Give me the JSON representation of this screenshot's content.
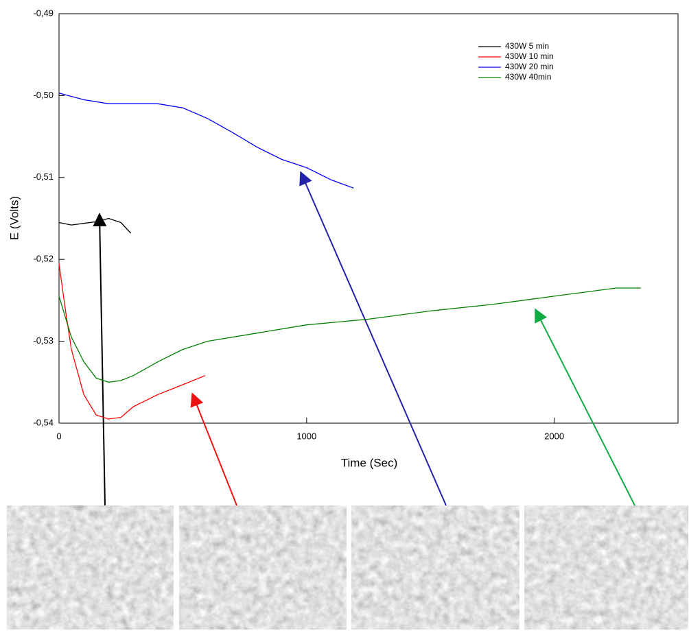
{
  "chart_data": {
    "type": "line",
    "x_label": "Time (Sec)",
    "y_label": "E (Volts)",
    "xlim": [
      0,
      2500
    ],
    "ylim": [
      -0.54,
      -0.49
    ],
    "xticks": [
      0,
      1000,
      2000
    ],
    "yticks": [
      {
        "value": -0.54,
        "label": "-0,54"
      },
      {
        "value": -0.53,
        "label": "-0,53"
      },
      {
        "value": -0.52,
        "label": "-0,52"
      },
      {
        "value": -0.51,
        "label": "-0,51"
      },
      {
        "value": -0.5,
        "label": "-0,50"
      },
      {
        "value": -0.49,
        "label": "-0,49"
      }
    ],
    "series": [
      {
        "name": "430W 5 min",
        "color": "#000000",
        "x": [
          0,
          50,
          100,
          150,
          200,
          250,
          290
        ],
        "values": [
          -0.5155,
          -0.5158,
          -0.5156,
          -0.5154,
          -0.515,
          -0.5155,
          -0.5168
        ]
      },
      {
        "name": "430W 10 min",
        "color": "#ff0000",
        "x": [
          0,
          25,
          50,
          100,
          150,
          200,
          250,
          300,
          400,
          500,
          590
        ],
        "values": [
          -0.5205,
          -0.526,
          -0.531,
          -0.5365,
          -0.539,
          -0.5395,
          -0.5393,
          -0.538,
          -0.5365,
          -0.5353,
          -0.5342
        ]
      },
      {
        "name": "430W 20 min",
        "color": "#0000ff",
        "x": [
          0,
          100,
          200,
          300,
          400,
          500,
          600,
          700,
          800,
          900,
          1000,
          1100,
          1190
        ],
        "values": [
          -0.4997,
          -0.5005,
          -0.501,
          -0.501,
          -0.501,
          -0.5015,
          -0.5028,
          -0.5045,
          -0.5063,
          -0.5078,
          -0.5088,
          -0.5103,
          -0.5113
        ]
      },
      {
        "name": "430W 40min",
        "color": "#008000",
        "x": [
          0,
          50,
          100,
          150,
          200,
          250,
          300,
          400,
          500,
          600,
          800,
          1000,
          1250,
          1500,
          1750,
          2000,
          2250,
          2350
        ],
        "values": [
          -0.5245,
          -0.5295,
          -0.5325,
          -0.5345,
          -0.535,
          -0.5348,
          -0.5342,
          -0.5325,
          -0.531,
          -0.53,
          -0.529,
          -0.528,
          -0.5273,
          -0.5263,
          -0.5255,
          -0.5245,
          -0.5235,
          -0.5235
        ]
      }
    ]
  }
}
